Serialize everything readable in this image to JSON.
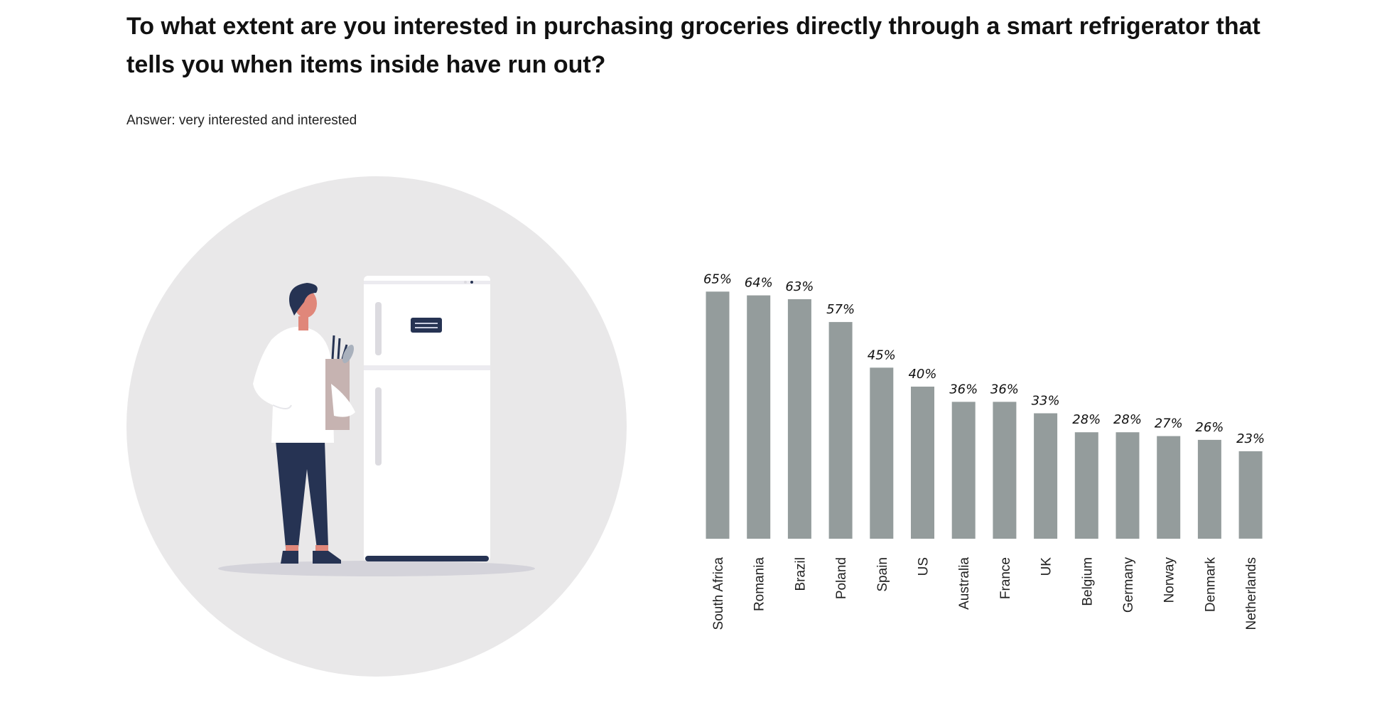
{
  "header": {
    "title": "To what extent are you interested in purchasing groceries directly through a smart refrigerator that tells you when items inside have run out?",
    "subtitle": "Answer: very interested and interested"
  },
  "colors": {
    "bar": "#949c9c",
    "circle_bg": "#e9e8e9",
    "pants": "#263353",
    "skin": "#e0877a",
    "hair": "#263353",
    "bag": "#c6b3b1"
  },
  "illustration": {
    "icon": "person-opening-smart-fridge-illustration"
  },
  "chart_data": {
    "type": "bar",
    "categories": [
      "South Africa",
      "Romania",
      "Brazil",
      "Poland",
      "Spain",
      "US",
      "Australia",
      "France",
      "UK",
      "Belgium",
      "Germany",
      "Norway",
      "Denmark",
      "Netherlands"
    ],
    "values": [
      65,
      64,
      63,
      57,
      45,
      40,
      36,
      36,
      33,
      28,
      28,
      27,
      26,
      23
    ],
    "value_labels": [
      "65%",
      "64%",
      "63%",
      "57%",
      "45%",
      "40%",
      "36%",
      "36%",
      "33%",
      "28%",
      "28%",
      "27%",
      "26%",
      "23%"
    ],
    "ylim": [
      0,
      100
    ],
    "grid": false,
    "legend": false
  }
}
